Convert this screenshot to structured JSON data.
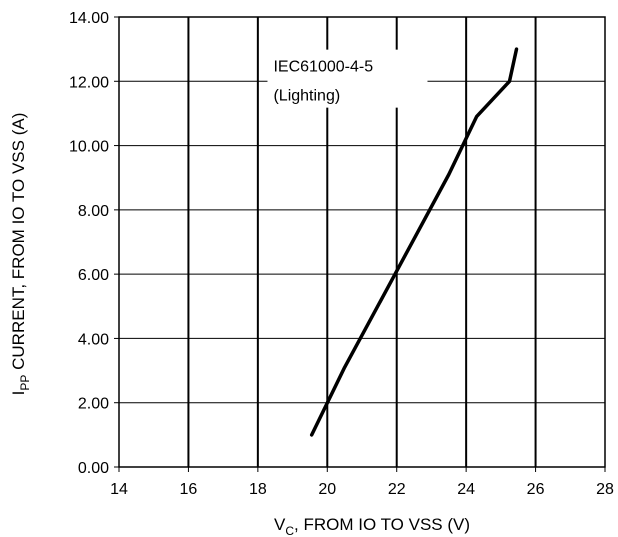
{
  "chart_data": {
    "type": "line",
    "title": "",
    "xlabel_main": "V",
    "xlabel_sub": "C",
    "xlabel_rest": ", FROM IO TO VSS (V)",
    "ylabel_main": "I",
    "ylabel_sub": "PP",
    "ylabel_rest": " CURRENT, FROM IO TO VSS (A)",
    "xlim": [
      14,
      28
    ],
    "ylim": [
      0,
      14
    ],
    "x_ticks": [
      14,
      16,
      18,
      20,
      22,
      24,
      26,
      28
    ],
    "x_tick_labels": [
      "14",
      "16",
      "18",
      "20",
      "22",
      "24",
      "26",
      "28"
    ],
    "y_ticks": [
      0,
      2,
      4,
      6,
      8,
      10,
      12,
      14
    ],
    "y_tick_labels": [
      "0.00",
      "2.00",
      "4.00",
      "6.00",
      "8.00",
      "10.00",
      "12.00",
      "14.00"
    ],
    "grid": true,
    "annotation": {
      "line1": "IEC61000-4-5",
      "line2": "(Lighting)"
    },
    "series": [
      {
        "x": [
          19.55,
          20.5,
          21.5,
          22.5,
          23.5,
          24.3,
          25.25,
          25.45
        ],
        "y": [
          1.0,
          3.1,
          5.1,
          7.1,
          9.1,
          10.9,
          12.0,
          13.0
        ]
      }
    ],
    "colors": {
      "line": "#000000",
      "grid": "#000000",
      "background": "#ffffff"
    }
  }
}
